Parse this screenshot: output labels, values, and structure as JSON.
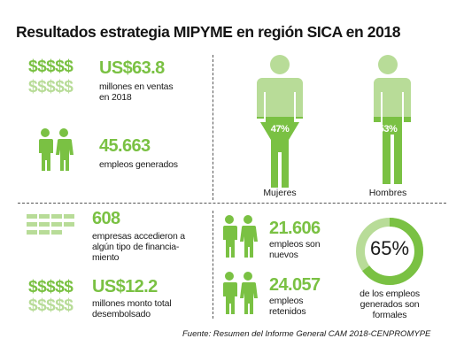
{
  "title": "Resultados estrategia MIPYME en región SICA en 2018",
  "colors": {
    "accent": "#7ac143",
    "accent_light": "#b8dc98",
    "text": "#1a1a1a"
  },
  "sales": {
    "dollar_row_dark": "$$$$$",
    "dollar_row_light": "$$$$$",
    "value": "US$63.8",
    "desc_line1": "millones en ventas",
    "desc_line2": "en 2018",
    "icon": "dollar-signs-icon"
  },
  "jobs": {
    "value": "45.663",
    "desc": "empleos generados",
    "icon": "couple-icon"
  },
  "gender": {
    "women_pct": "47%",
    "women_label": "Mujeres",
    "women_fraction": 0.47,
    "men_pct": "53%",
    "men_label": "Hombres",
    "men_fraction": 0.53
  },
  "financing": {
    "value": "608",
    "desc_line1": "empresas accedieron a",
    "desc_line2": "algún tipo de financia-",
    "desc_line3": "miento",
    "icon": "bills-icon"
  },
  "disbursed": {
    "dollar_row_dark": "$$$$$",
    "dollar_row_light": "$$$$$",
    "value": "US$12.2",
    "desc_line1": "millones monto total",
    "desc_line2": "desembolsado",
    "icon": "dollar-signs-icon"
  },
  "new_jobs": {
    "value": "21.606",
    "desc_line1": "empleos son",
    "desc_line2": "nuevos",
    "icon": "couple-icon"
  },
  "retained_jobs": {
    "value": "24.057",
    "desc_line1": "empleos",
    "desc_line2": "retenidos",
    "icon": "couple-icon"
  },
  "formal": {
    "value": "65%",
    "fraction": 0.65,
    "desc_line1": "de los empleos",
    "desc_line2": "generados son",
    "desc_line3": "formales"
  },
  "source": "Fuente: Resumen del Informe General CAM 2018-CENPROMYPE"
}
